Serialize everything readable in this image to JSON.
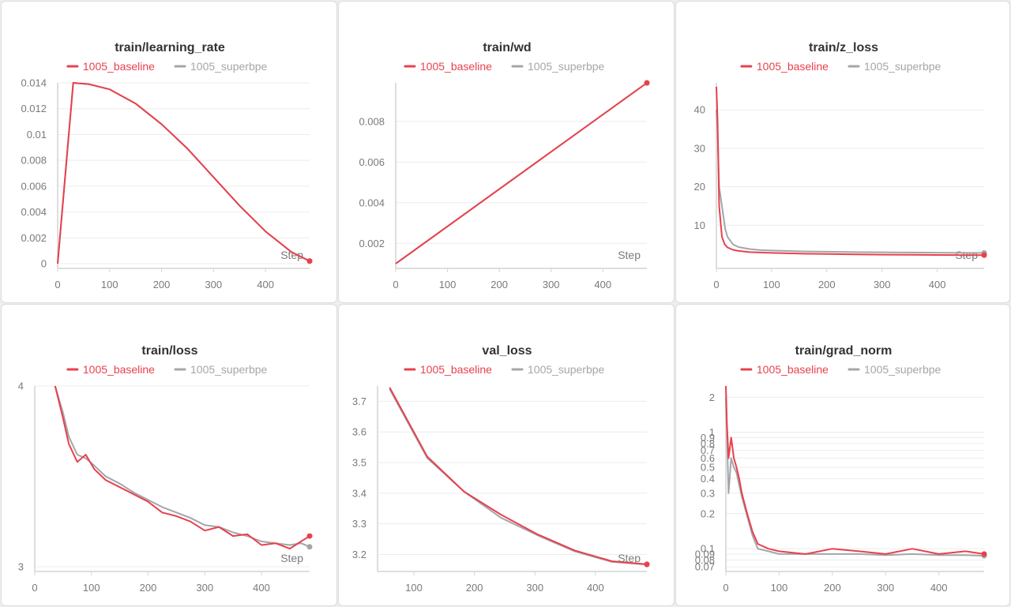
{
  "colors": {
    "baseline": "#e8414d",
    "superbpe": "#a3a6aa",
    "grid": "#ececec",
    "axis": "#d4d4d4"
  },
  "legend": [
    {
      "name": "1005_baseline",
      "color": "#e8414d"
    },
    {
      "name": "1005_superbpe",
      "color": "#a3a6aa"
    }
  ],
  "chart_data": [
    {
      "title": "train/learning_rate",
      "type": "line",
      "xlabel": "Step",
      "xlim": [
        0,
        485
      ],
      "ylim": [
        0,
        0.014
      ],
      "xticks": [
        0,
        100,
        200,
        300,
        400
      ],
      "yticks": [
        0,
        0.002,
        0.004,
        0.006,
        0.008,
        0.01,
        0.012,
        0.014
      ],
      "yticklabels": [
        "0",
        "0.002",
        "0.004",
        "0.006",
        "0.008",
        "0.01",
        "0.012",
        "0.014"
      ],
      "series": [
        {
          "name": "1005_baseline",
          "x": [
            0,
            30,
            60,
            100,
            150,
            200,
            250,
            300,
            350,
            400,
            450,
            485
          ],
          "y": [
            0,
            0.014,
            0.0139,
            0.0135,
            0.0124,
            0.0108,
            0.0089,
            0.0067,
            0.0045,
            0.0025,
            0.0009,
            0.0002
          ]
        },
        {
          "name": "1005_superbpe",
          "x": [
            0,
            30,
            60,
            100,
            150,
            200,
            250,
            300,
            350,
            400,
            450,
            485
          ],
          "y": [
            0,
            0.014,
            0.0139,
            0.0135,
            0.0124,
            0.0108,
            0.0089,
            0.0067,
            0.0045,
            0.0025,
            0.0009,
            0.0002
          ]
        }
      ]
    },
    {
      "title": "train/wd",
      "type": "line",
      "xlabel": "Step",
      "xlim": [
        0,
        485
      ],
      "ylim": [
        0.001,
        0.0099
      ],
      "xticks": [
        0,
        100,
        200,
        300,
        400
      ],
      "yticks": [
        0.002,
        0.004,
        0.006,
        0.008
      ],
      "yticklabels": [
        "0.002",
        "0.004",
        "0.006",
        "0.008"
      ],
      "series": [
        {
          "name": "1005_baseline",
          "x": [
            0,
            485
          ],
          "y": [
            0.001,
            0.0099
          ]
        },
        {
          "name": "1005_superbpe",
          "x": [
            0,
            485
          ],
          "y": [
            0.001,
            0.0099
          ]
        }
      ]
    },
    {
      "title": "train/z_loss",
      "type": "line",
      "xlabel": "Step",
      "xlim": [
        0,
        485
      ],
      "ylim": [
        0,
        47
      ],
      "xticks": [
        0,
        100,
        200,
        300,
        400
      ],
      "yticks": [
        10,
        20,
        30,
        40
      ],
      "yticklabels": [
        "10",
        "20",
        "30",
        "40"
      ],
      "series": [
        {
          "name": "1005_baseline",
          "x": [
            0,
            2,
            5,
            10,
            15,
            20,
            30,
            40,
            60,
            80,
            100,
            150,
            200,
            250,
            300,
            350,
            400,
            450,
            485
          ],
          "y": [
            46,
            38,
            15,
            7,
            5,
            4.2,
            3.6,
            3.3,
            3.0,
            2.9,
            2.8,
            2.6,
            2.5,
            2.4,
            2.35,
            2.3,
            2.25,
            2.2,
            2.2
          ]
        },
        {
          "name": "1005_superbpe",
          "x": [
            0,
            2,
            5,
            8,
            12,
            16,
            20,
            30,
            40,
            60,
            80,
            100,
            150,
            200,
            250,
            300,
            350,
            400,
            450,
            485
          ],
          "y": [
            40,
            35,
            20,
            17,
            13,
            9,
            7,
            5,
            4.3,
            3.8,
            3.5,
            3.4,
            3.2,
            3.1,
            3.0,
            2.95,
            2.9,
            2.85,
            2.8,
            2.8
          ]
        }
      ]
    },
    {
      "title": "train/loss",
      "type": "line",
      "xlabel": "Step",
      "xlim": [
        0,
        485
      ],
      "ylim": [
        3,
        4
      ],
      "xticks": [
        0,
        100,
        200,
        300,
        400
      ],
      "yticks": [
        3,
        4
      ],
      "yticklabels": [
        "3",
        "4"
      ],
      "series": [
        {
          "name": "1005_baseline",
          "x": [
            36,
            50,
            60,
            75,
            90,
            105,
            125,
            150,
            175,
            200,
            225,
            250,
            275,
            300,
            325,
            350,
            375,
            400,
            425,
            450,
            470,
            485
          ],
          "y": [
            4.0,
            3.82,
            3.68,
            3.58,
            3.62,
            3.54,
            3.48,
            3.44,
            3.4,
            3.36,
            3.3,
            3.28,
            3.25,
            3.2,
            3.22,
            3.17,
            3.18,
            3.12,
            3.13,
            3.1,
            3.14,
            3.17
          ]
        },
        {
          "name": "1005_superbpe",
          "x": [
            36,
            50,
            60,
            75,
            90,
            105,
            125,
            150,
            175,
            200,
            225,
            250,
            275,
            300,
            325,
            350,
            375,
            400,
            425,
            450,
            470,
            485
          ],
          "y": [
            4.0,
            3.85,
            3.72,
            3.62,
            3.6,
            3.56,
            3.5,
            3.46,
            3.41,
            3.37,
            3.33,
            3.3,
            3.27,
            3.23,
            3.22,
            3.19,
            3.17,
            3.14,
            3.13,
            3.12,
            3.13,
            3.11
          ]
        }
      ]
    },
    {
      "title": "val_loss",
      "type": "line",
      "xlabel": "Step",
      "xlim": [
        40,
        485
      ],
      "ylim": [
        3.16,
        3.75
      ],
      "xticks": [
        100,
        200,
        300,
        400
      ],
      "yticks": [
        3.2,
        3.3,
        3.4,
        3.5,
        3.6,
        3.7
      ],
      "yticklabels": [
        "3.2",
        "3.3",
        "3.4",
        "3.5",
        "3.6",
        "3.7"
      ],
      "series": [
        {
          "name": "1005_baseline",
          "x": [
            60,
            122,
            183,
            244,
            305,
            366,
            427,
            485
          ],
          "y": [
            3.745,
            3.52,
            3.405,
            3.33,
            3.265,
            3.213,
            3.178,
            3.168
          ]
        },
        {
          "name": "1005_superbpe",
          "x": [
            60,
            122,
            183,
            244,
            305,
            366,
            427,
            485
          ],
          "y": [
            3.74,
            3.515,
            3.405,
            3.32,
            3.262,
            3.21,
            3.176,
            3.167
          ]
        }
      ]
    },
    {
      "title": "train/grad_norm",
      "type": "line",
      "xlabel": "",
      "yscale": "log",
      "xlim": [
        0,
        485
      ],
      "ylim": [
        0.07,
        2.5
      ],
      "xticks": [
        0,
        100,
        200,
        300,
        400
      ],
      "yticks": [
        0.07,
        0.08,
        0.09,
        0.1,
        0.2,
        0.3,
        0.4,
        0.5,
        0.6,
        0.7,
        0.8,
        0.9,
        1,
        2
      ],
      "yticklabels": [
        "0.07",
        "0.08",
        "0.09",
        "0.1",
        "0.2",
        "0.3",
        "0.4",
        "0.5",
        "0.6",
        "0.7",
        "0.8",
        "0.9",
        "1",
        "2"
      ],
      "series": [
        {
          "name": "1005_baseline",
          "x": [
            0,
            2,
            5,
            10,
            15,
            20,
            25,
            30,
            40,
            50,
            60,
            80,
            100,
            150,
            200,
            250,
            300,
            350,
            400,
            450,
            485
          ],
          "y": [
            2.5,
            1.2,
            0.6,
            0.9,
            0.6,
            0.5,
            0.4,
            0.3,
            0.2,
            0.14,
            0.11,
            0.1,
            0.095,
            0.09,
            0.1,
            0.095,
            0.09,
            0.1,
            0.09,
            0.095,
            0.09
          ]
        },
        {
          "name": "1005_superbpe",
          "x": [
            0,
            2,
            5,
            10,
            15,
            20,
            25,
            30,
            40,
            50,
            60,
            80,
            100,
            150,
            200,
            250,
            300,
            350,
            400,
            450,
            485
          ],
          "y": [
            2.0,
            1.0,
            0.3,
            0.6,
            0.5,
            0.45,
            0.35,
            0.28,
            0.19,
            0.13,
            0.1,
            0.095,
            0.09,
            0.09,
            0.09,
            0.09,
            0.088,
            0.09,
            0.088,
            0.088,
            0.087
          ]
        }
      ]
    }
  ]
}
